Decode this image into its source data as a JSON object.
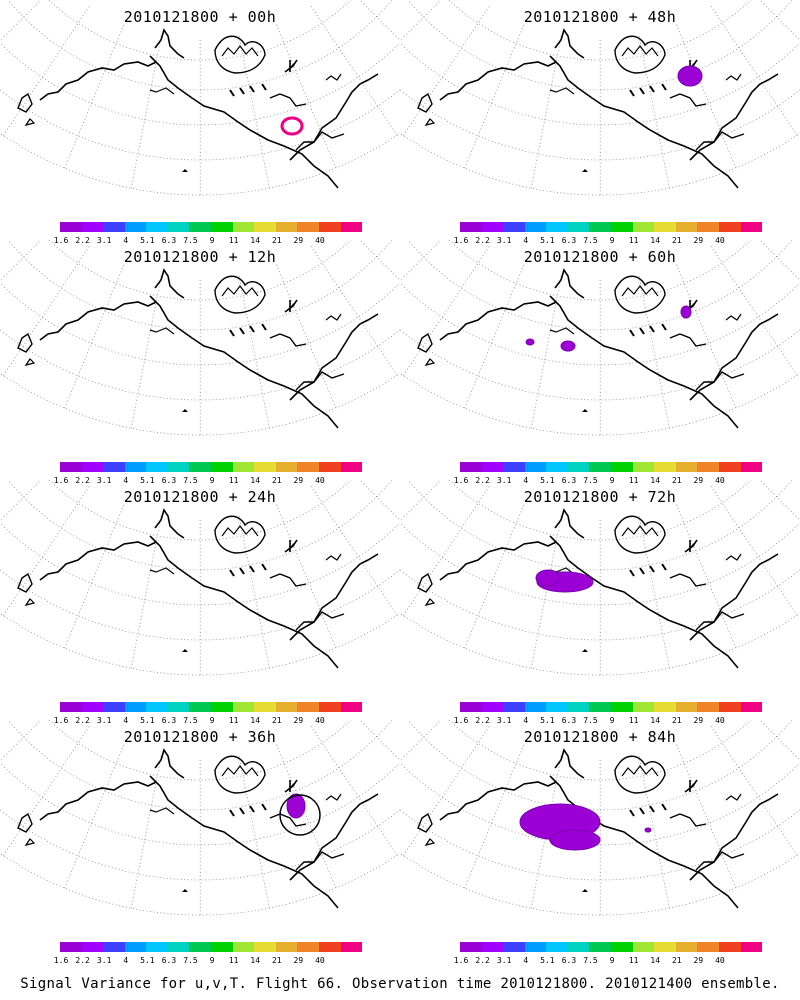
{
  "colorbar": {
    "colors": [
      "#9b00d4",
      "#a000ff",
      "#3f3fff",
      "#009cff",
      "#00c8ff",
      "#00d2c0",
      "#00c850",
      "#00d200",
      "#a0e632",
      "#e6dc32",
      "#e6af2d",
      "#f08228",
      "#f04020",
      "#f00082"
    ],
    "labels": [
      "1.6",
      "2.2",
      "3.1",
      "4",
      "5.1",
      "6.3",
      "7.5",
      "9",
      "11",
      "14",
      "21",
      "29",
      "40"
    ]
  },
  "panels": [
    {
      "title": "2010121800 + 00h"
    },
    {
      "title": "2010121800 + 48h"
    },
    {
      "title": "2010121800 + 12h"
    },
    {
      "title": "2010121800 + 60h"
    },
    {
      "title": "2010121800 + 24h"
    },
    {
      "title": "2010121800 + 72h"
    },
    {
      "title": "2010121800 + 36h"
    },
    {
      "title": "2010121800 + 84h"
    }
  ],
  "footer": "Signal Variance for u,v,T. Flight 66. Observation time 2010121800. 2010121400 ensemble."
}
